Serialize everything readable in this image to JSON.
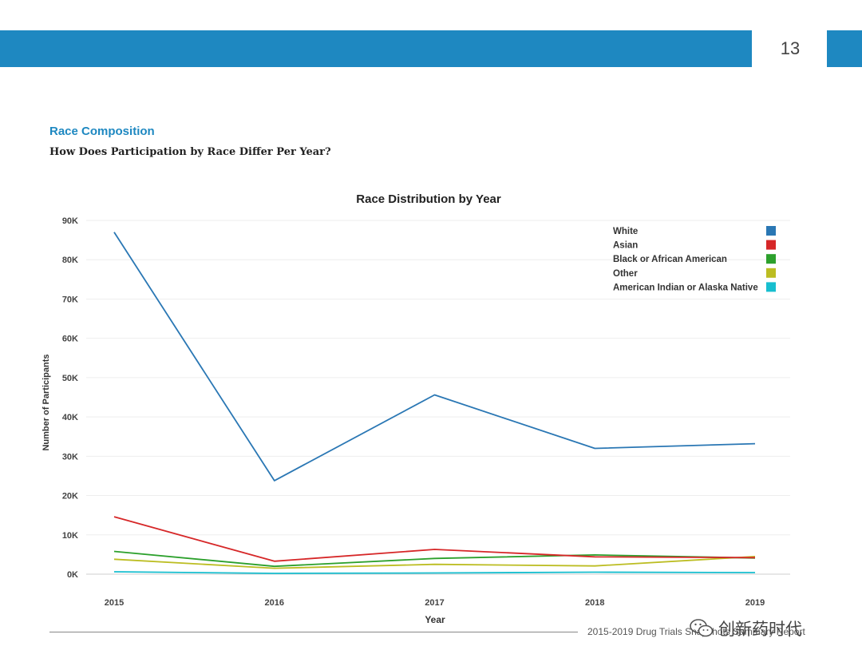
{
  "page": {
    "number": "13",
    "section_title": "Race Composition",
    "section_subtitle": "How Does Participation by Race Differ Per Year?",
    "footer_text": "2015-2019 Drug Trials Snapshots Summary Report",
    "watermark_text": "创新药时代",
    "accent_color": "#1e88c1"
  },
  "chart_data": {
    "type": "line",
    "title": "Race Distribution by Year",
    "xlabel": "Year",
    "ylabel": "Number of Participants",
    "x": [
      "2015",
      "2016",
      "2017",
      "2018",
      "2019"
    ],
    "ylim": [
      0,
      90000
    ],
    "y_ticks": [
      0,
      10000,
      20000,
      30000,
      40000,
      50000,
      60000,
      70000,
      80000,
      90000
    ],
    "y_tick_labels": [
      "0K",
      "10K",
      "20K",
      "30K",
      "40K",
      "50K",
      "60K",
      "70K",
      "80K",
      "90K"
    ],
    "grid": true,
    "legend_position": "top-right",
    "series": [
      {
        "name": "White",
        "color": "#2a77b4",
        "values": [
          87000,
          23800,
          45600,
          32000,
          33200
        ]
      },
      {
        "name": "Asian",
        "color": "#d62728",
        "values": [
          14600,
          3300,
          6300,
          4400,
          4200
        ]
      },
      {
        "name": "Black or African American",
        "color": "#2ca02c",
        "values": [
          5800,
          2000,
          4000,
          4900,
          4100
        ]
      },
      {
        "name": "Other",
        "color": "#bcbd22",
        "values": [
          3800,
          1500,
          2500,
          2100,
          4500
        ]
      },
      {
        "name": "American Indian or Alaska Native",
        "color": "#17becf",
        "values": [
          600,
          200,
          300,
          500,
          400
        ]
      }
    ]
  }
}
